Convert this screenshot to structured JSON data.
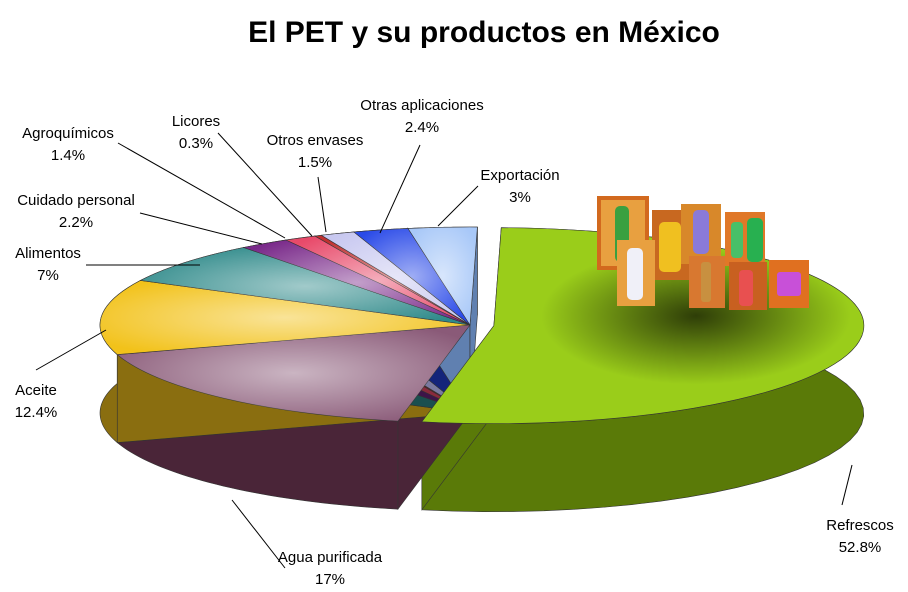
{
  "chart_data": {
    "type": "pie",
    "title": "El PET y su productos en México",
    "slices": [
      {
        "name": "Refrescos",
        "value": 52.8,
        "label": "52.8%",
        "color": "#9acd1a",
        "side": "#5a7a08"
      },
      {
        "name": "Agua purificada",
        "value": 17,
        "label": "17%",
        "color": "#8a5a78",
        "side": "#4a2538"
      },
      {
        "name": "Aceite",
        "value": 12.4,
        "label": "12.4%",
        "color": "#f2c21a",
        "side": "#8a6e10"
      },
      {
        "name": "Alimentos",
        "value": 7,
        "label": "7%",
        "color": "#2f8a8a",
        "side": "#1a4f4f"
      },
      {
        "name": "Cuidado personal",
        "value": 2.2,
        "label": "2.2%",
        "color": "#7a2a8a",
        "side": "#3e1448"
      },
      {
        "name": "Agroquímicos",
        "value": 1.4,
        "label": "1.4%",
        "color": "#e84a6a",
        "side": "#8a2a3c"
      },
      {
        "name": "Licores",
        "value": 0.3,
        "label": "0.3%",
        "color": "#c03030",
        "side": "#6a1a1a"
      },
      {
        "name": "Otros envases",
        "value": 1.5,
        "label": "1.5%",
        "color": "#c8c8f0",
        "side": "#7a7aa0"
      },
      {
        "name": "Otras aplicaciones",
        "value": 2.4,
        "label": "2.4%",
        "color": "#2a4ae8",
        "side": "#14247a"
      },
      {
        "name": "Exportación",
        "value": 3,
        "label": "3%",
        "color": "#a8c8f8",
        "side": "#6080b0"
      }
    ]
  }
}
